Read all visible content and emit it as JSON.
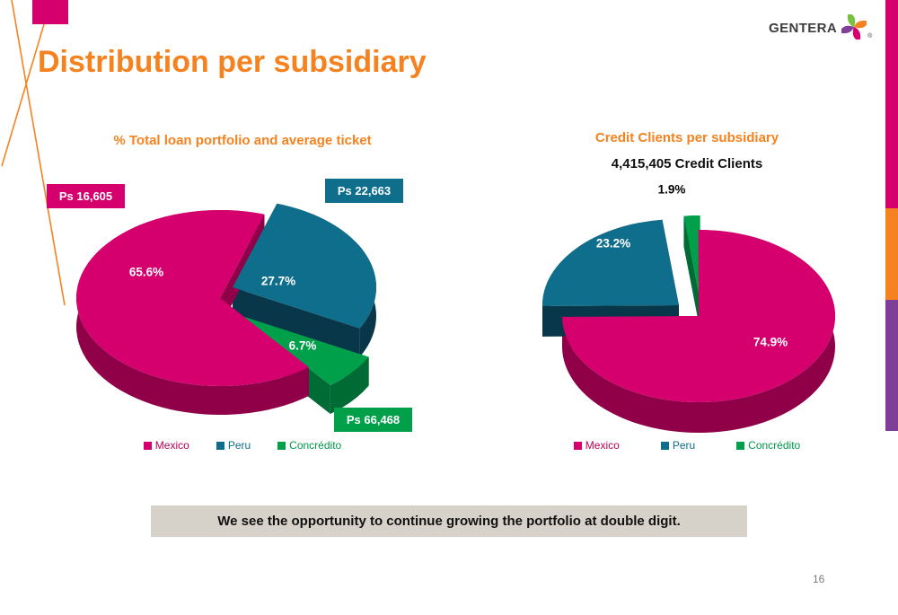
{
  "slide": {
    "title": "Distribution per subsidiary",
    "page_number": "16",
    "banner_text": "We see the opportunity to continue growing the portfolio at double digit.",
    "logo": {
      "text": "GENTERA",
      "registered": "®"
    }
  },
  "colors": {
    "accent_orange": "#F5821F",
    "series": [
      "#D5006D",
      "#0E6E8C",
      "#00A04B"
    ],
    "series_dark": [
      "#8F0049",
      "#08374A",
      "#006B35"
    ],
    "legend_text": [
      "#B80055",
      "#0E6E8C",
      "#00994A"
    ],
    "logo_petals": [
      "#7AC143",
      "#F58220",
      "#D5006D",
      "#7F3F98"
    ],
    "strip": [
      "#D5006D",
      "#F58220",
      "#7F3F98"
    ],
    "banner_bg": "#D6D2CA"
  },
  "chart_data": [
    {
      "type": "pie",
      "style": "3d-exploded",
      "title": "% Total loan portfolio and average ticket",
      "labels": [
        "Mexico",
        "Peru",
        "Concrédito"
      ],
      "values": [
        65.6,
        27.7,
        6.7
      ],
      "unit": "%",
      "callouts": [
        {
          "label": "Ps 16,605",
          "series": "Mexico"
        },
        {
          "label": "Ps 22,663",
          "series": "Peru"
        },
        {
          "label": "Ps 66,468",
          "series": "Concrédito"
        }
      ],
      "legend_position": "bottom"
    },
    {
      "type": "pie",
      "style": "3d-exploded",
      "title": "Credit Clients per subsidiary",
      "subtitle": "4,415,405 Credit Clients",
      "labels": [
        "Mexico",
        "Peru",
        "Concrédito"
      ],
      "values": [
        74.9,
        23.2,
        1.9
      ],
      "unit": "%",
      "legend_position": "bottom"
    }
  ]
}
